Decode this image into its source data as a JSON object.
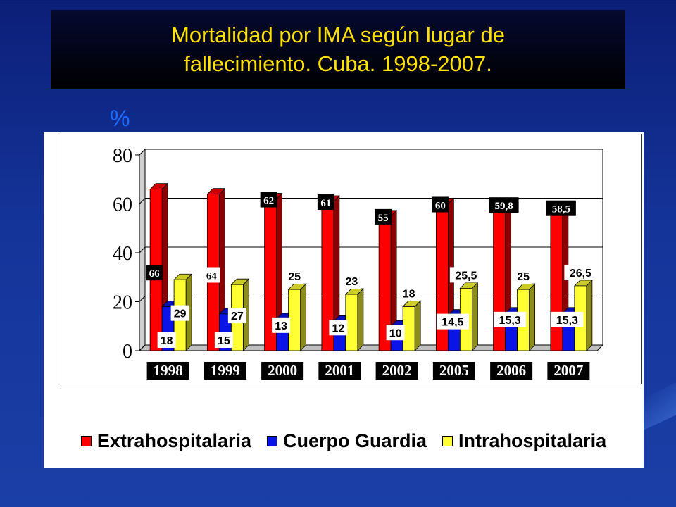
{
  "slide": {
    "title_line1": "Mortalidad  por IMA según lugar de",
    "title_line2": "fallecimiento.  Cuba. 1998-2007.",
    "unit": "%"
  },
  "legend": [
    {
      "label": "Extrahospitalaria",
      "color": "#ff0000"
    },
    {
      "label": "Cuerpo Guardia",
      "color": "#0a14e6"
    },
    {
      "label": "Intrahospitalaria",
      "color": "#ffff33"
    }
  ],
  "chart_data": {
    "type": "bar",
    "categories": [
      "1998",
      "1999",
      "2000",
      "2001",
      "2002",
      "2005",
      "2006",
      "2007"
    ],
    "ylim": [
      0,
      80
    ],
    "yticks": [
      "0",
      "20",
      "40",
      "60",
      "80"
    ],
    "grid": true,
    "series": [
      {
        "name": "Extrahospitalaria",
        "color": "#ff0000",
        "values": [
          66,
          64,
          62,
          61,
          55,
          60,
          59.8,
          58.5
        ],
        "labels": [
          "66",
          "64",
          "62",
          "61",
          "55",
          "60",
          "59,8",
          "58,5"
        ]
      },
      {
        "name": "Cuerpo Guardia",
        "color": "#0a14e6",
        "values": [
          18,
          15,
          13,
          12,
          10,
          14.5,
          15.3,
          15.3
        ],
        "labels": [
          "18",
          "15",
          "13",
          "12",
          "10",
          "14,5",
          "15,3",
          "15,3"
        ]
      },
      {
        "name": "Intrahospitalaria",
        "color": "#ffff33",
        "values": [
          29,
          27,
          25,
          23,
          18,
          25.5,
          25,
          26.5
        ],
        "labels": [
          "29",
          "27",
          "25",
          "23",
          "18",
          "25,5",
          "25",
          "26,5"
        ]
      }
    ]
  }
}
